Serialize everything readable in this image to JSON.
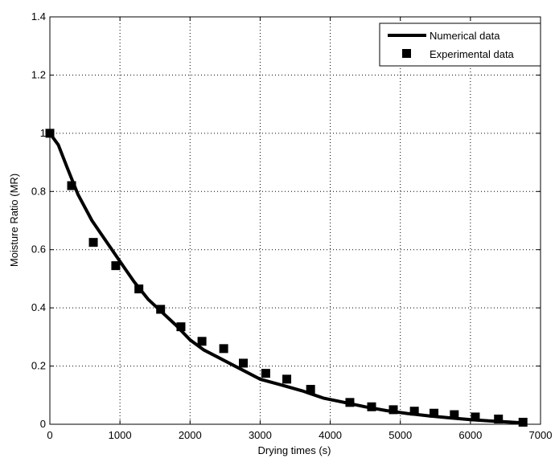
{
  "chart_data": {
    "type": "line",
    "xlabel": "Drying times (s)",
    "ylabel": "Moisture Ratio (MR)",
    "xlim": [
      0,
      7000
    ],
    "ylim": [
      0,
      1.4
    ],
    "xticks": [
      0,
      1000,
      2000,
      3000,
      4000,
      5000,
      6000,
      7000
    ],
    "yticks": [
      0,
      0.2,
      0.4,
      0.6,
      0.8,
      1,
      1.2,
      1.4
    ],
    "xtick_labels": [
      "0",
      "1000",
      "2000",
      "3000",
      "4000",
      "5000",
      "6000",
      "7000"
    ],
    "ytick_labels": [
      "0",
      "0.2",
      "0.4",
      "0.6",
      "0.8",
      "1",
      "1.2",
      "1.4"
    ],
    "grid": true,
    "legend_position": "top-right",
    "series": [
      {
        "name": "Numerical data",
        "kind": "line",
        "color": "#000000",
        "x": [
          0,
          120,
          250,
          400,
          600,
          800,
          1000,
          1200,
          1400,
          1600,
          1800,
          2000,
          2200,
          2400,
          2600,
          2800,
          3000,
          3300,
          3600,
          3900,
          4200,
          4500,
          4800,
          5100,
          5400,
          5700,
          6000,
          6300,
          6600,
          6750
        ],
        "y": [
          1.0,
          0.96,
          0.88,
          0.79,
          0.7,
          0.63,
          0.56,
          0.49,
          0.43,
          0.385,
          0.34,
          0.29,
          0.255,
          0.23,
          0.205,
          0.18,
          0.155,
          0.135,
          0.115,
          0.09,
          0.075,
          0.06,
          0.047,
          0.037,
          0.029,
          0.022,
          0.016,
          0.011,
          0.007,
          0.005
        ]
      },
      {
        "name": "Experimental data",
        "kind": "scatter",
        "color": "#000000",
        "x": [
          0,
          310,
          620,
          940,
          1270,
          1580,
          1870,
          2170,
          2480,
          2760,
          3080,
          3380,
          3720,
          4280,
          4590,
          4900,
          5200,
          5480,
          5770,
          6070,
          6400,
          6750
        ],
        "y": [
          1.0,
          0.82,
          0.625,
          0.545,
          0.465,
          0.395,
          0.335,
          0.285,
          0.26,
          0.21,
          0.175,
          0.155,
          0.12,
          0.075,
          0.06,
          0.05,
          0.045,
          0.038,
          0.033,
          0.025,
          0.018,
          0.007
        ]
      }
    ]
  }
}
